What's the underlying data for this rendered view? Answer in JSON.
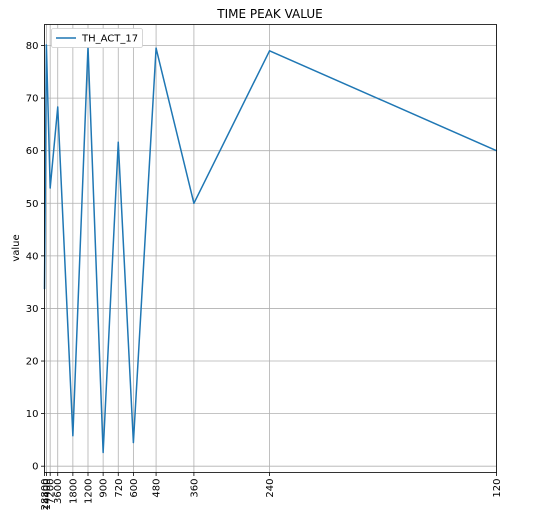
{
  "chart_data": {
    "type": "line",
    "title": "TIME PEAK VALUE",
    "xlabel": "",
    "ylabel": "value",
    "x_scale": "reciprocal",
    "x": [
      28800,
      14400,
      7200,
      3600,
      1800,
      1200,
      900,
      720,
      600,
      480,
      360,
      240,
      120
    ],
    "x_tick_labels": [
      "28800",
      "14400",
      "7200",
      "3600",
      "1800",
      "1200",
      "900",
      "720",
      "600",
      "480",
      "360",
      "240",
      "120"
    ],
    "series": [
      {
        "name": "TH_ACT_17",
        "color": "#1f77b4",
        "values": [
          33.7,
          80.1,
          52.9,
          68.3,
          5.8,
          79.8,
          2.6,
          61.6,
          4.5,
          79.5,
          50.0,
          79.0,
          60.0
        ]
      }
    ],
    "ylim": [
      -1.2,
      84
    ],
    "y_ticks": [
      0,
      10,
      20,
      30,
      40,
      50,
      60,
      70,
      80
    ],
    "grid": true,
    "legend": "top-left"
  }
}
